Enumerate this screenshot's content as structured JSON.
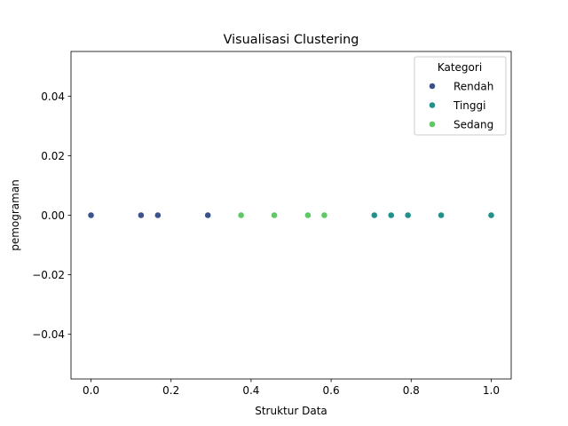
{
  "chart_data": {
    "type": "scatter",
    "title": "Visualisasi Clustering",
    "xlabel": "Struktur Data",
    "ylabel": "pemograman",
    "xlim": [
      -0.05,
      1.05
    ],
    "ylim": [
      -0.055,
      0.055
    ],
    "xticks": [
      0.0,
      0.2,
      0.4,
      0.6,
      0.8,
      1.0
    ],
    "xtick_labels": [
      "0.0",
      "0.2",
      "0.4",
      "0.6",
      "0.8",
      "1.0"
    ],
    "yticks": [
      0.04,
      0.02,
      0.0,
      -0.02,
      -0.04
    ],
    "ytick_labels": [
      "0.04",
      "0.02",
      "0.00",
      "−0.02",
      "−0.04"
    ],
    "grid": false,
    "legend": {
      "title": "Kategori",
      "placement": "top-right"
    },
    "series": [
      {
        "name": "Rendah",
        "color": "#3b528b",
        "points": [
          [
            0.0,
            0.0
          ],
          [
            0.125,
            0.0
          ],
          [
            0.167,
            0.0
          ],
          [
            0.292,
            0.0
          ]
        ]
      },
      {
        "name": "Tinggi",
        "color": "#21918c",
        "points": [
          [
            0.708,
            0.0
          ],
          [
            0.75,
            0.0
          ],
          [
            0.792,
            0.0
          ],
          [
            0.875,
            0.0
          ],
          [
            1.0,
            0.0
          ]
        ]
      },
      {
        "name": "Sedang",
        "color": "#5ec962",
        "points": [
          [
            0.375,
            0.0
          ],
          [
            0.458,
            0.0
          ],
          [
            0.542,
            0.0
          ],
          [
            0.583,
            0.0
          ]
        ]
      }
    ]
  }
}
